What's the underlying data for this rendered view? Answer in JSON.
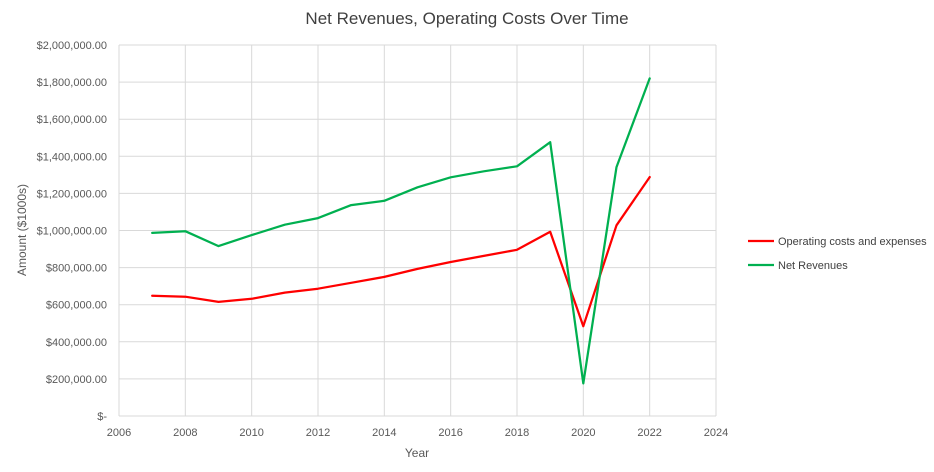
{
  "chart_data": {
    "type": "line",
    "title": "Net Revenues, Operating Costs Over Time",
    "xlabel": "Year",
    "ylabel": "Amount ($1000s)",
    "xlim": [
      2006,
      2024
    ],
    "ylim": [
      0,
      2000000
    ],
    "x_ticks": [
      2006,
      2008,
      2010,
      2012,
      2014,
      2016,
      2018,
      2020,
      2022,
      2024
    ],
    "y_ticks": [
      0,
      200000,
      400000,
      600000,
      800000,
      1000000,
      1200000,
      1400000,
      1600000,
      1800000,
      2000000
    ],
    "y_tick_labels": [
      "$-",
      "$200,000.00",
      "$400,000.00",
      "$600,000.00",
      "$800,000.00",
      "$1,000,000.00",
      "$1,200,000.00",
      "$1,400,000.00",
      "$1,600,000.00",
      "$1,800,000.00",
      "$2,000,000.00"
    ],
    "grid": true,
    "legend_position": "right",
    "x": [
      2007,
      2008,
      2009,
      2010,
      2011,
      2012,
      2013,
      2014,
      2015,
      2016,
      2017,
      2018,
      2019,
      2020,
      2021,
      2022
    ],
    "series": [
      {
        "name": "Operating costs and expenses",
        "color": "#ff0000",
        "values": [
          648000,
          643000,
          615000,
          632000,
          665000,
          686000,
          718000,
          750000,
          793000,
          830000,
          863000,
          896000,
          993000,
          484000,
          1028000,
          1288000
        ]
      },
      {
        "name": "Net Revenues",
        "color": "#00b050",
        "values": [
          987000,
          996000,
          916000,
          975000,
          1031000,
          1067000,
          1137000,
          1160000,
          1233000,
          1287000,
          1319000,
          1346000,
          1476000,
          176000,
          1342000,
          1820000
        ]
      }
    ]
  }
}
